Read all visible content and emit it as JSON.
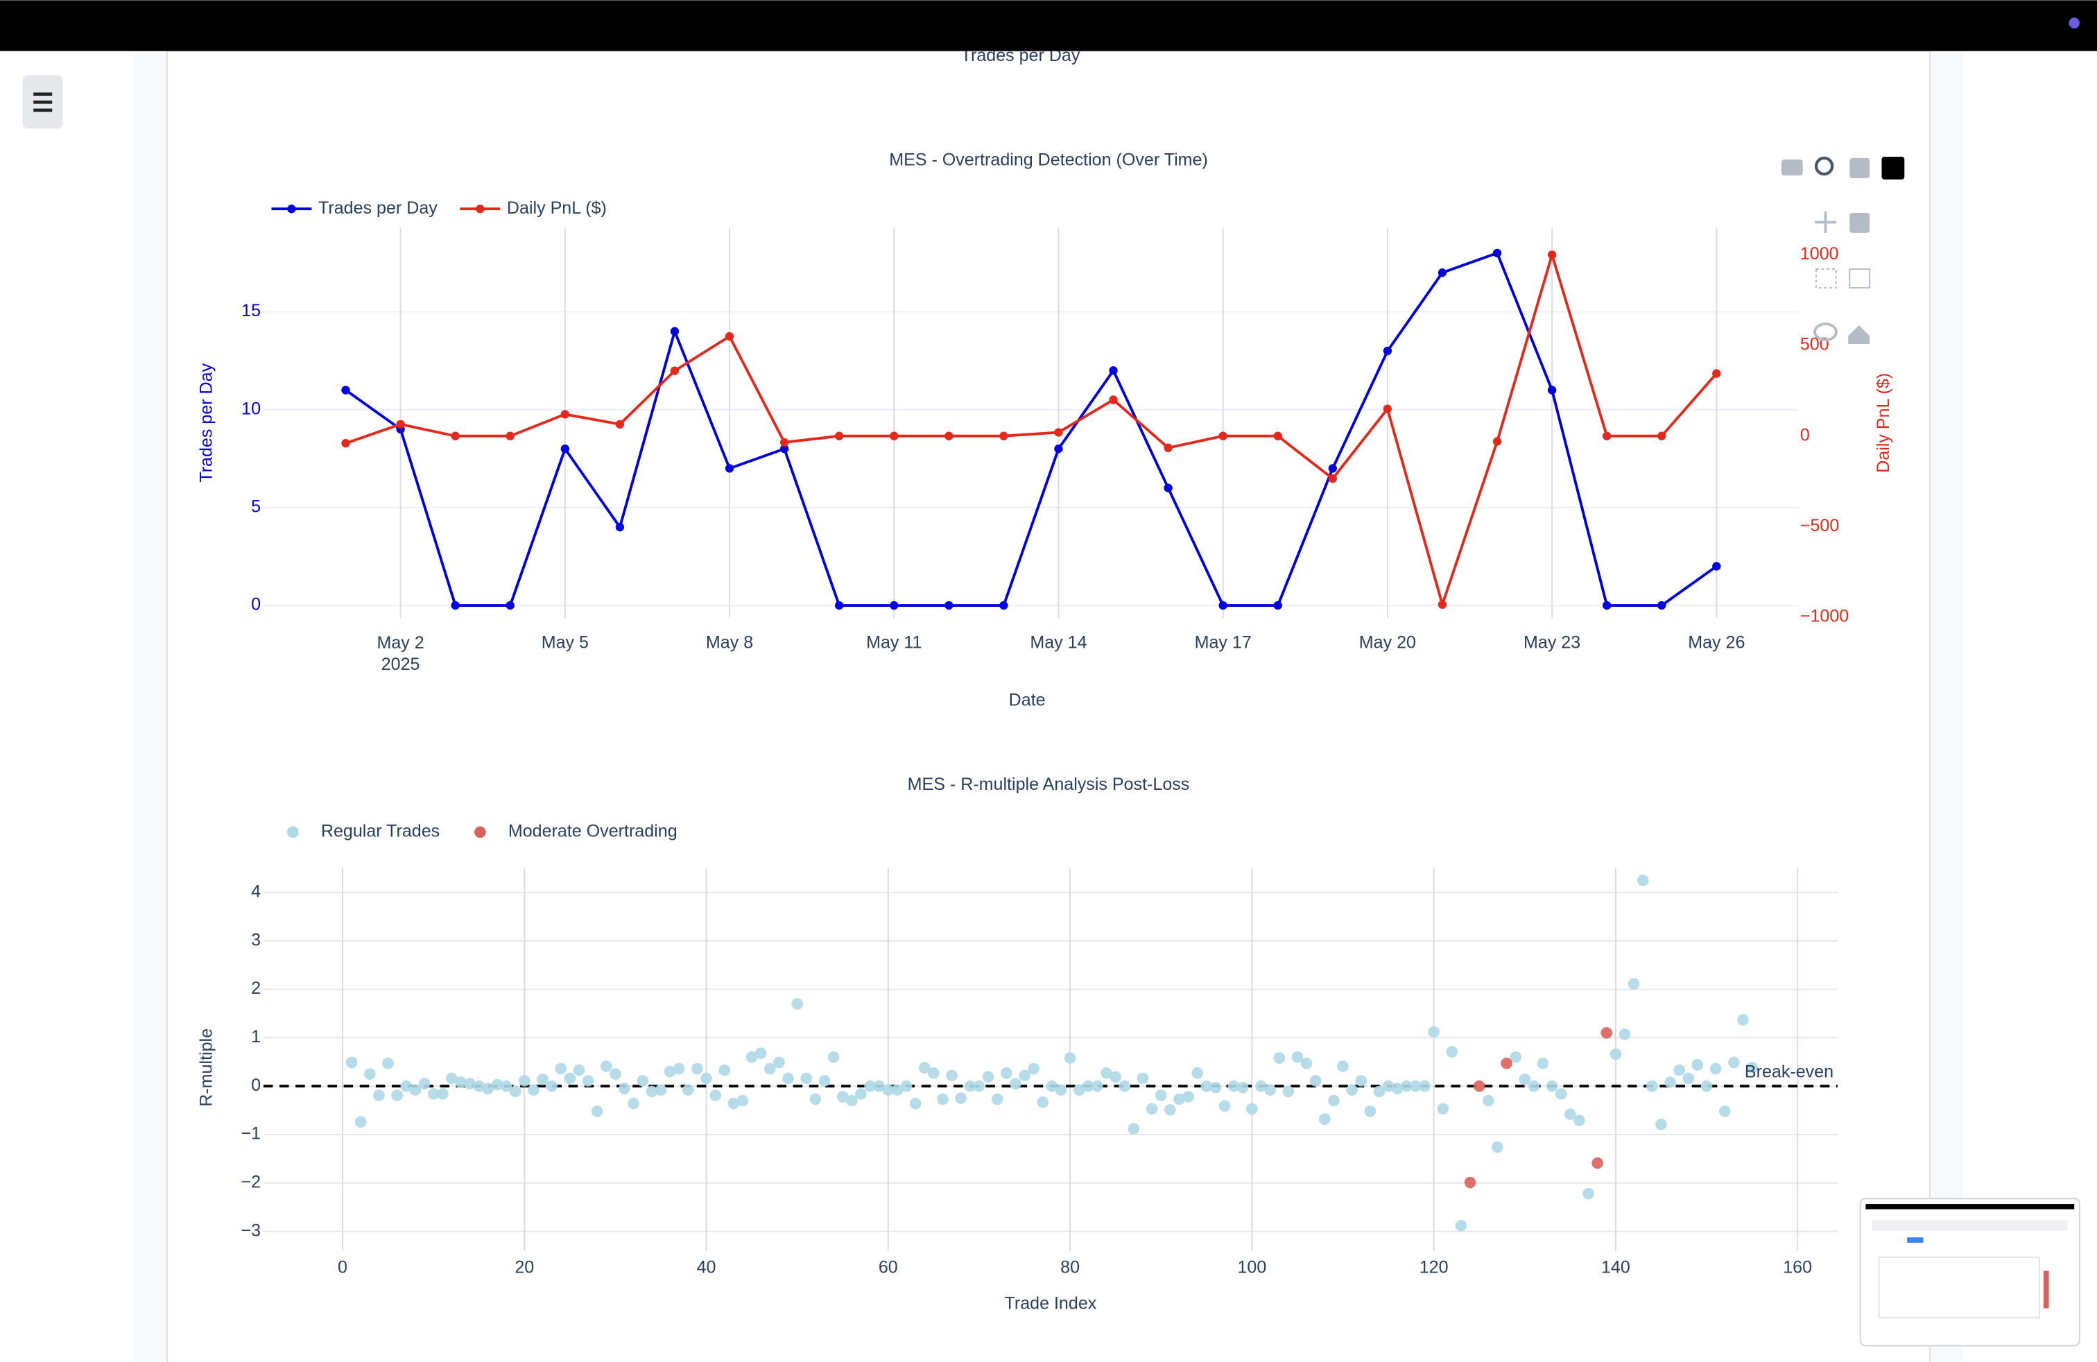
{
  "page": {
    "partial_title": "Trades per Day"
  },
  "chart_data": [
    {
      "type": "line",
      "title": "MES - Overtrading Detection (Over Time)",
      "x_label": "Date",
      "y_label": "Trades per Day",
      "y2_label": "Daily PnL ($)",
      "x": [
        "2025-05-01",
        "2025-05-02",
        "2025-05-03",
        "2025-05-04",
        "2025-05-05",
        "2025-05-06",
        "2025-05-07",
        "2025-05-08",
        "2025-05-09",
        "2025-05-10",
        "2025-05-11",
        "2025-05-12",
        "2025-05-13",
        "2025-05-14",
        "2025-05-15",
        "2025-05-16",
        "2025-05-17",
        "2025-05-18",
        "2025-05-19",
        "2025-05-20",
        "2025-05-21",
        "2025-05-22",
        "2025-05-23",
        "2025-05-24",
        "2025-05-25",
        "2025-05-26"
      ],
      "series": [
        {
          "name": "Trades per Day",
          "color": "#0000dd",
          "values": [
            11,
            9,
            0,
            0,
            8,
            4,
            14,
            7,
            8,
            0,
            0,
            0,
            0,
            8,
            12,
            6,
            0,
            0,
            7,
            13,
            17,
            18,
            11,
            0,
            0,
            2
          ]
        },
        {
          "name": "Daily PnL ($)",
          "color": "#e3281c",
          "axis": "y2",
          "values": [
            -40,
            65,
            0,
            0,
            120,
            65,
            360,
            550,
            -35,
            0,
            0,
            0,
            0,
            20,
            200,
            -65,
            0,
            0,
            -235,
            150,
            -930,
            -30,
            1000,
            0,
            0,
            345
          ]
        }
      ],
      "xlim": [
        "2025-04-29T12:00:00Z",
        "2025-05-27T12:00:00Z"
      ],
      "xticks": [
        {
          "value": "2025-05-02",
          "label": "May 2\n2025"
        },
        {
          "value": "2025-05-05",
          "label": "May 5"
        },
        {
          "value": "2025-05-08",
          "label": "May 8"
        },
        {
          "value": "2025-05-11",
          "label": "May 11"
        },
        {
          "value": "2025-05-14",
          "label": "May 14"
        },
        {
          "value": "2025-05-17",
          "label": "May 17"
        },
        {
          "value": "2025-05-20",
          "label": "May 20"
        },
        {
          "value": "2025-05-23",
          "label": "May 23"
        },
        {
          "value": "2025-05-26",
          "label": "May 26"
        }
      ],
      "ylim": [
        -0.65,
        19.3
      ],
      "yticks": [
        0,
        5,
        10,
        15
      ],
      "y2lim": [
        -1005,
        1150
      ],
      "y2ticks": [
        {
          "value": -1000,
          "label": "−1000"
        },
        {
          "value": -500,
          "label": "−500"
        },
        0,
        500,
        1000
      ],
      "grid": true,
      "legend": "top-left"
    },
    {
      "type": "scatter",
      "title": "MES - R-multiple Analysis Post-Loss",
      "x_label": "Trade Index",
      "y_label": "R-multiple",
      "series": [
        {
          "name": "Regular Trades",
          "color": "#add8e6",
          "x": [
            1,
            2,
            3,
            4,
            5,
            6,
            7,
            8,
            9,
            10,
            11,
            12,
            13,
            14,
            15,
            16,
            17,
            18,
            19,
            20,
            21,
            22,
            23,
            24,
            25,
            26,
            27,
            28,
            29,
            30,
            31,
            32,
            33,
            34,
            35,
            36,
            37,
            38,
            39,
            40,
            41,
            42,
            43,
            44,
            45,
            46,
            47,
            48,
            49,
            50,
            51,
            52,
            53,
            54,
            55,
            56,
            57,
            58,
            59,
            60,
            61,
            62,
            63,
            64,
            65,
            66,
            67,
            68,
            69,
            70,
            71,
            72,
            73,
            74,
            75,
            76,
            77,
            78,
            79,
            80,
            81,
            82,
            83,
            84,
            85,
            86,
            87,
            88,
            89,
            90,
            91,
            92,
            93,
            94,
            95,
            96,
            97,
            98,
            99,
            100,
            101,
            102,
            103,
            104,
            105,
            106,
            107,
            108,
            109,
            110,
            111,
            112,
            113,
            114,
            115,
            116,
            117,
            118,
            119,
            120,
            121,
            122,
            123,
            126,
            127,
            129,
            130,
            131,
            132,
            133,
            134,
            135,
            136,
            137,
            140,
            141,
            142,
            143,
            144,
            145,
            146,
            147,
            148,
            149,
            150,
            151,
            152,
            153,
            154,
            155
          ],
          "values": [
            0.49,
            -0.74,
            0.25,
            -0.19,
            0.47,
            -0.19,
            0,
            -0.08,
            0.05,
            -0.16,
            -0.16,
            0.16,
            0.08,
            0.05,
            0,
            -0.05,
            0.03,
            0,
            -0.11,
            0.11,
            -0.08,
            0.14,
            0,
            0.36,
            0.16,
            0.33,
            0.11,
            -0.52,
            0.41,
            0.25,
            -0.05,
            -0.36,
            0.11,
            -0.11,
            -0.08,
            0.3,
            0.36,
            -0.08,
            0.36,
            0.16,
            -0.19,
            0.33,
            -0.36,
            -0.3,
            0.6,
            0.68,
            0.36,
            0.49,
            0.16,
            1.7,
            0.16,
            -0.27,
            0.11,
            0.6,
            -0.22,
            -0.3,
            -0.16,
            0,
            0,
            -0.08,
            -0.08,
            0,
            -0.36,
            0.38,
            0.27,
            -0.27,
            0.22,
            -0.25,
            0,
            0,
            0.19,
            -0.27,
            0.27,
            0.05,
            0.22,
            0.36,
            -0.33,
            0,
            -0.08,
            0.58,
            -0.08,
            0,
            0,
            0.27,
            0.19,
            0,
            -0.88,
            0.16,
            -0.47,
            -0.19,
            -0.49,
            -0.27,
            -0.22,
            0.27,
            0,
            -0.03,
            -0.41,
            0,
            -0.03,
            -0.47,
            0,
            -0.08,
            0.58,
            -0.11,
            0.6,
            0.47,
            0.11,
            -0.68,
            -0.3,
            0.41,
            -0.08,
            0.11,
            -0.52,
            -0.11,
            0,
            -0.05,
            0,
            0,
            0,
            1.12,
            -0.47,
            0.71,
            -2.88,
            -0.3,
            -1.26,
            0.6,
            0.14,
            0,
            0.47,
            0,
            -0.16,
            -0.58,
            -0.71,
            -2.22,
            0.66,
            1.07,
            2.11,
            4.25,
            0,
            -0.79,
            0.08,
            0.33,
            0.16,
            0.44,
            0,
            0.36,
            -0.52,
            0.49,
            1.37,
            0.38
          ]
        },
        {
          "name": "Moderate Overtrading",
          "color": "#d9625c",
          "x": [
            124,
            125,
            128,
            138,
            139
          ],
          "values": [
            -1.99,
            0,
            0.47,
            -1.59,
            1.1
          ]
        }
      ],
      "hline": {
        "value": 0,
        "label": "Break-even"
      },
      "xlim": [
        -8.7,
        164.4
      ],
      "xticks": [
        0,
        20,
        40,
        60,
        80,
        100,
        120,
        140,
        160
      ],
      "ylim": [
        -3.4,
        4.5
      ],
      "yticks": [
        {
          "value": -3,
          "label": "−3"
        },
        {
          "value": -2,
          "label": "−2"
        },
        {
          "value": -1,
          "label": "−1"
        },
        0,
        1,
        2,
        3,
        4
      ],
      "grid": true,
      "legend": "top-left"
    }
  ]
}
